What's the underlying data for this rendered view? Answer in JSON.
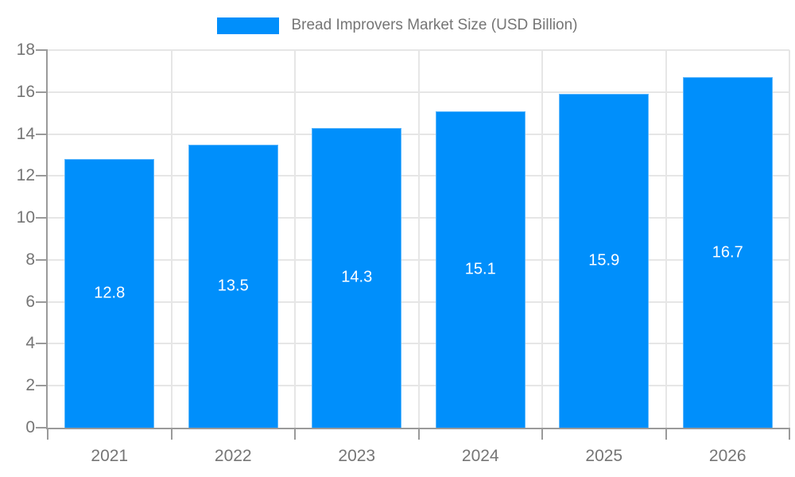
{
  "chart_data": {
    "type": "bar",
    "title": "Bread Improvers Market Size (USD Billion)",
    "legend": [
      "Bread Improvers Market Size (USD Billion)"
    ],
    "legend_position": "top-center",
    "categories": [
      "2021",
      "2022",
      "2023",
      "2024",
      "2025",
      "2026"
    ],
    "series": [
      {
        "name": "Bread Improvers Market Size (USD Billion)",
        "values": [
          12.8,
          13.5,
          14.3,
          15.1,
          15.9,
          16.7
        ]
      }
    ],
    "value_labels": [
      "12.8",
      "13.5",
      "14.3",
      "15.1",
      "15.9",
      "16.7"
    ],
    "xlabel": "",
    "ylabel": "",
    "ylim": [
      0,
      18
    ],
    "yticks": [
      0,
      2,
      4,
      6,
      8,
      10,
      12,
      14,
      16,
      18
    ],
    "grid": true
  },
  "colors": {
    "bar": "#008FFB",
    "bar_edge": "#5eb8fc",
    "axis": "#9a9a9a",
    "grid": "#e6e6e6",
    "tick_label": "#757575",
    "value_label": "#ffffff",
    "background": "#ffffff"
  }
}
